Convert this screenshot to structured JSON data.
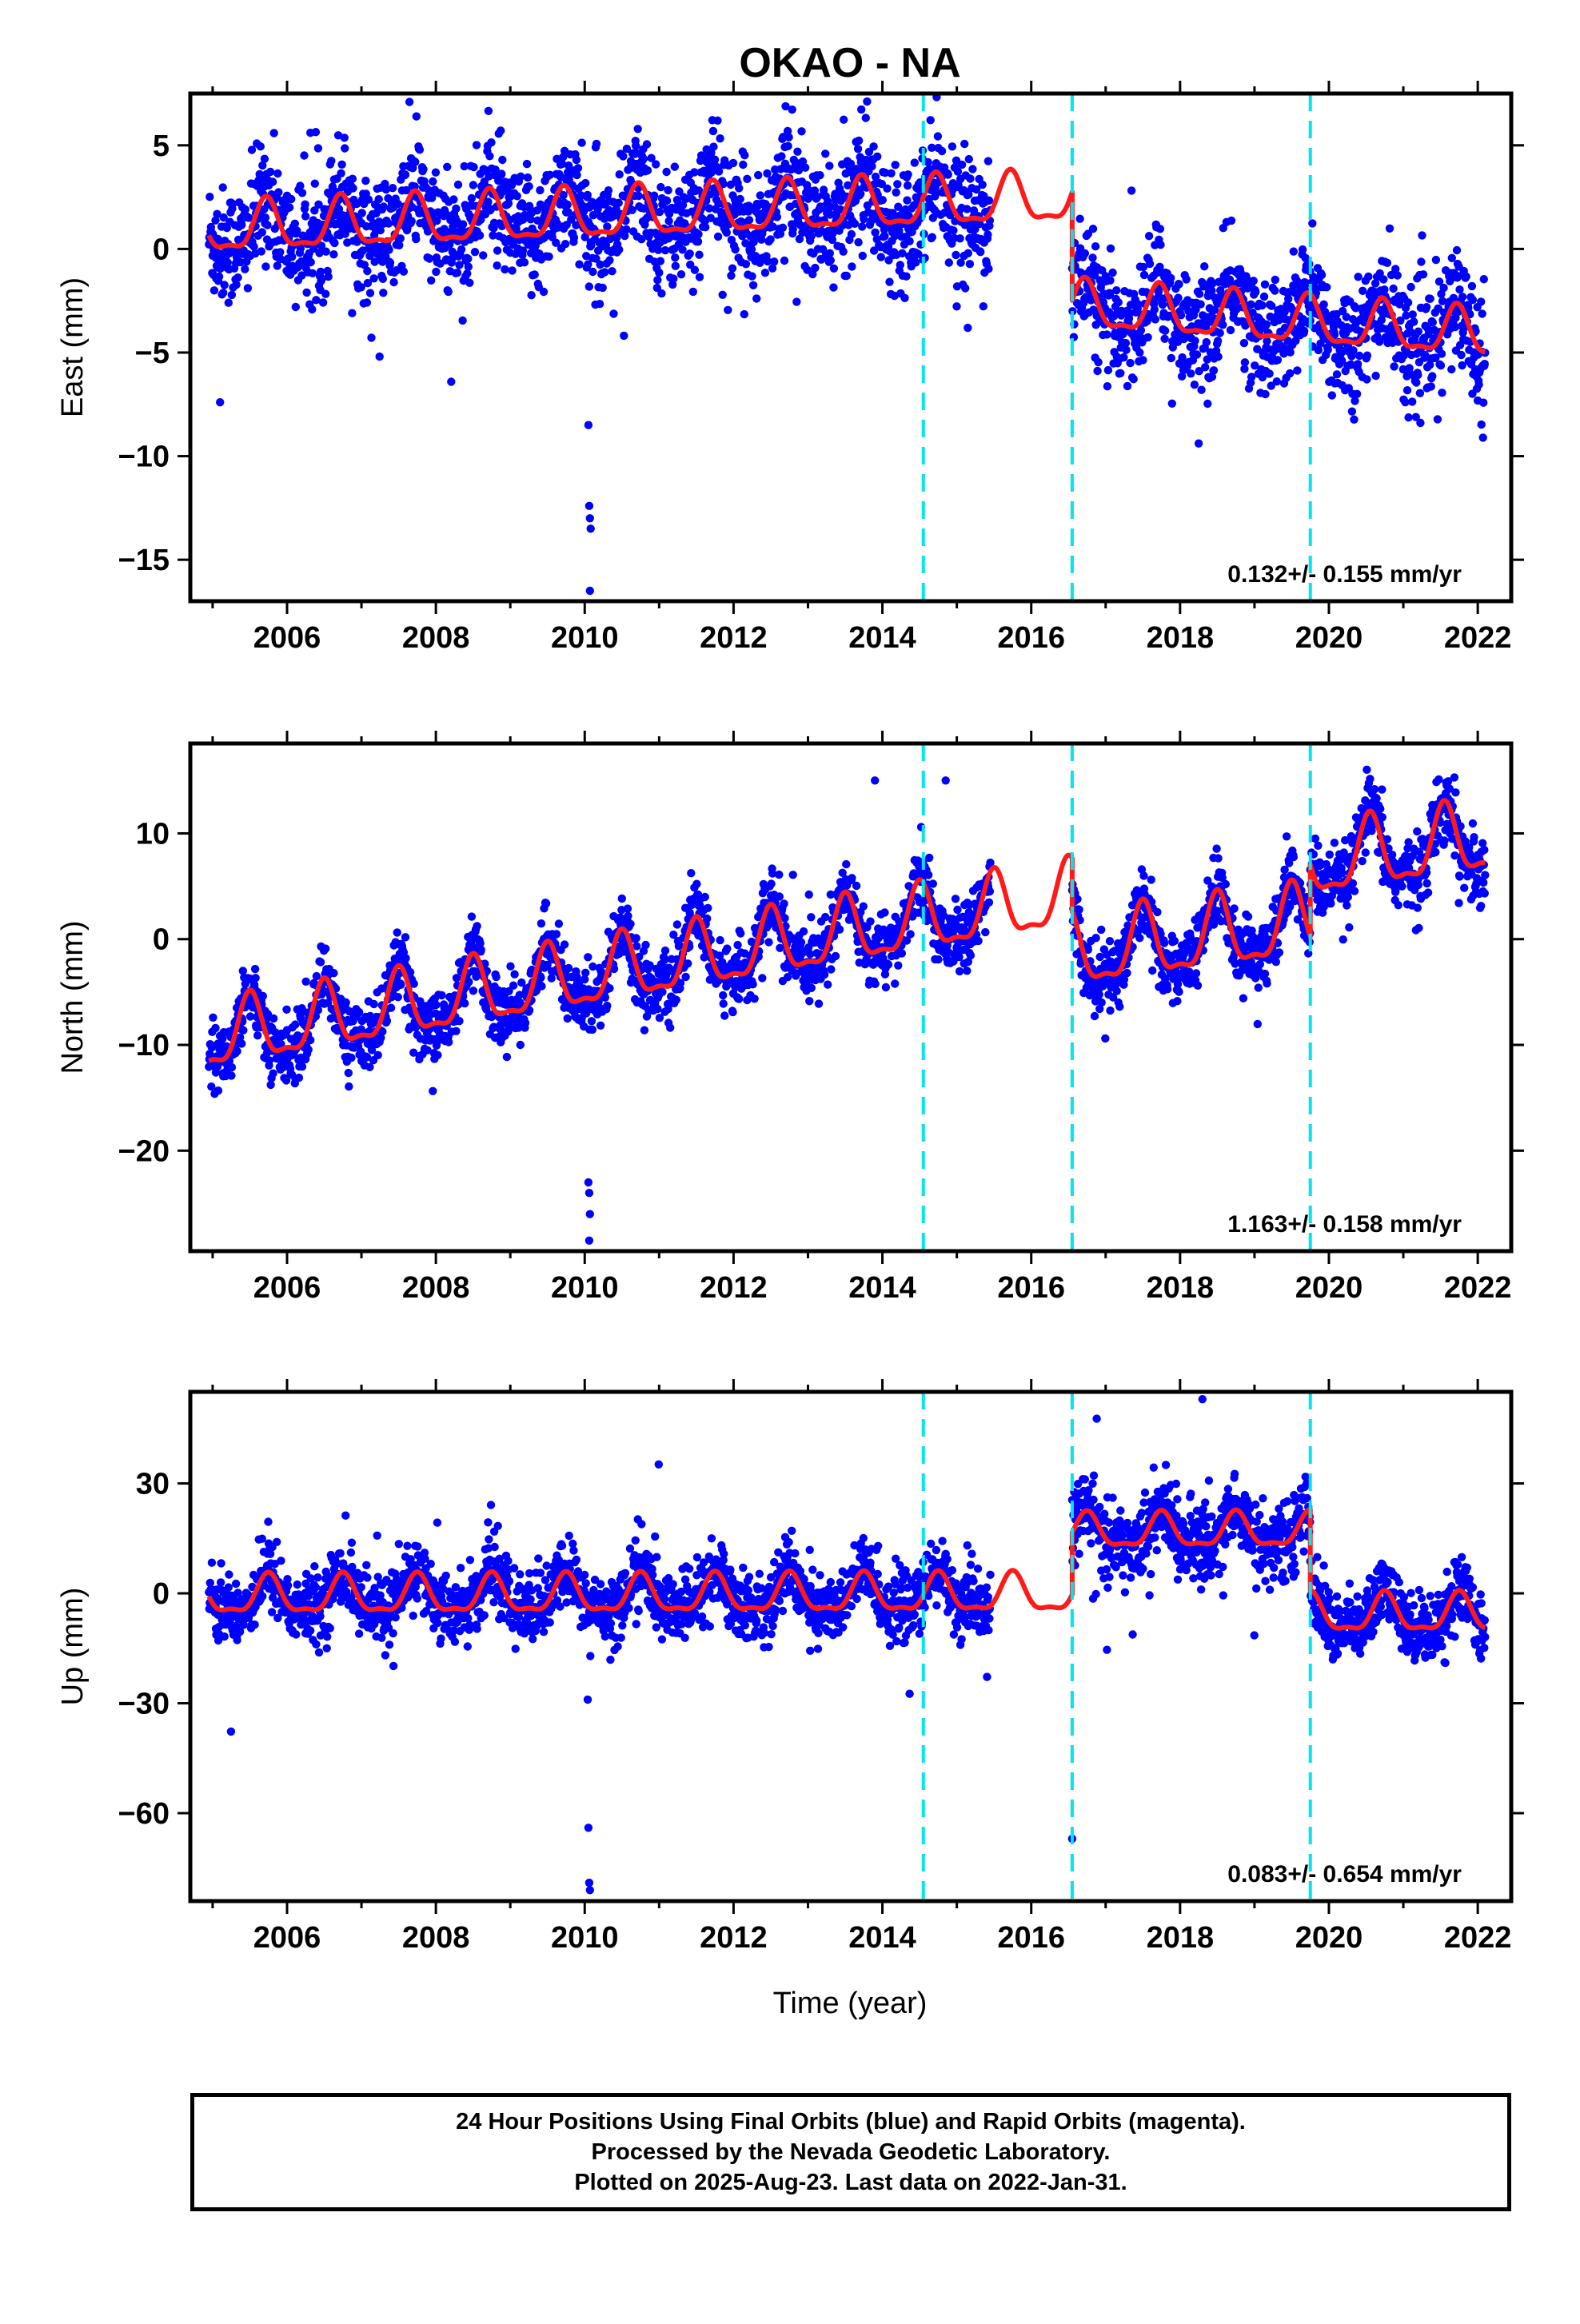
{
  "title": "OKAO - NA",
  "xlabel": "Time (year)",
  "caption": {
    "line1": "24 Hour Positions Using Final Orbits (blue) and Rapid Orbits (magenta).",
    "line2": "Processed by the Nevada Geodetic Laboratory.",
    "line3": "Plotted on 2025-Aug-23. Last data on 2022-Jan-31."
  },
  "colors": {
    "data": "#0000ff",
    "model": "#ff1a1a",
    "event_line": "#00e5ee",
    "axes": "#000000"
  },
  "chart_data": [
    {
      "type": "scatter",
      "component": "east",
      "ylabel": "East (mm)",
      "rate_text": "0.132+/- 0.155 mm/yr",
      "xlim": [
        2004.7,
        2022.45
      ],
      "ylim": [
        -17,
        7.5
      ],
      "xticks": [
        2006,
        2008,
        2010,
        2012,
        2014,
        2016,
        2018,
        2020,
        2022
      ],
      "yticks": [
        5,
        0,
        -5,
        -10,
        -15
      ],
      "event_lines": [
        2014.55,
        2016.55,
        2019.75
      ],
      "data_gap": [
        2015.45,
        2016.55
      ],
      "segments": [
        {
          "x0": 2004.95,
          "x1": 2016.55,
          "y0": 0.9,
          "trend": 0.13,
          "ann_amp": 1.15,
          "ann_phase_peak": 0.72,
          "noise": 1.4
        },
        {
          "x0": 2016.55,
          "x1": 2019.75,
          "y0": -2.8,
          "trend": -0.25,
          "ann_amp": 1.1,
          "ann_phase_peak": 0.72,
          "noise": 1.3
        },
        {
          "x0": 2019.75,
          "x1": 2022.1,
          "y0": -3.6,
          "trend": -0.25,
          "ann_amp": 1.1,
          "ann_phase_peak": 0.72,
          "noise": 1.4
        }
      ],
      "outliers": [
        [
          2010.05,
          -8.5
        ],
        [
          2010.06,
          -12.4
        ],
        [
          2010.07,
          -13.0
        ],
        [
          2010.08,
          -13.5
        ],
        [
          2010.07,
          -16.5
        ],
        [
          2005.1,
          -7.4
        ]
      ]
    },
    {
      "type": "scatter",
      "component": "north",
      "ylabel": "North (mm)",
      "rate_text": "1.163+/- 0.158 mm/yr",
      "xlim": [
        2004.7,
        2022.45
      ],
      "ylim": [
        -29.5,
        18.5
      ],
      "xticks": [
        2006,
        2008,
        2010,
        2012,
        2014,
        2016,
        2018,
        2020,
        2022
      ],
      "yticks": [
        10,
        0,
        -10,
        -20
      ],
      "event_lines": [
        2014.55,
        2016.55,
        2019.75
      ],
      "data_gap": [
        2015.45,
        2016.55
      ],
      "segments": [
        {
          "x0": 2004.95,
          "x1": 2016.55,
          "y0": -9.5,
          "trend": 1.16,
          "ann_amp": 3.0,
          "ann_phase_peak": 0.5,
          "noise": 1.5
        },
        {
          "x0": 2016.55,
          "x1": 2019.75,
          "y0": -1.5,
          "trend": 0.9,
          "ann_amp": 3.3,
          "ann_phase_peak": 0.5,
          "noise": 1.6
        },
        {
          "x0": 2019.75,
          "x1": 2022.1,
          "y0": 7.0,
          "trend": 1.0,
          "ann_amp": 3.2,
          "ann_phase_peak": 0.55,
          "noise": 1.6
        }
      ],
      "outliers": [
        [
          2010.05,
          -23.0
        ],
        [
          2010.06,
          -24.0
        ],
        [
          2010.07,
          -26.0
        ],
        [
          2010.06,
          -28.5
        ],
        [
          2013.9,
          15.0
        ],
        [
          2014.85,
          15.0
        ]
      ]
    },
    {
      "type": "scatter",
      "component": "up",
      "ylabel": "Up (mm)",
      "rate_text": "0.083+/- 0.654 mm/yr",
      "xlim": [
        2004.7,
        2022.45
      ],
      "ylim": [
        -84,
        55
      ],
      "xticks": [
        2006,
        2008,
        2010,
        2012,
        2014,
        2016,
        2018,
        2020,
        2022
      ],
      "yticks": [
        30,
        0,
        -30,
        -60
      ],
      "event_lines": [
        2014.55,
        2016.55,
        2019.75
      ],
      "data_gap": [
        2015.45,
        2016.55
      ],
      "segments": [
        {
          "x0": 2004.95,
          "x1": 2016.55,
          "y0": -1.0,
          "trend": 0.05,
          "ann_amp": 5.0,
          "ann_phase_peak": 0.75,
          "noise": 4.5
        },
        {
          "x0": 2016.55,
          "x1": 2019.75,
          "y0": 16.5,
          "trend": 0.1,
          "ann_amp": 4.5,
          "ann_phase_peak": 0.75,
          "noise": 5.0
        },
        {
          "x0": 2019.75,
          "x1": 2022.1,
          "y0": -6.0,
          "trend": 0.05,
          "ann_amp": 5.0,
          "ann_phase_peak": 0.75,
          "noise": 4.5
        }
      ],
      "outliers": [
        [
          2010.05,
          -64.0
        ],
        [
          2010.06,
          -79.0
        ],
        [
          2010.07,
          -81.0
        ],
        [
          2016.55,
          -67.0
        ],
        [
          2018.3,
          53.0
        ],
        [
          2010.04,
          -29.0
        ]
      ]
    }
  ]
}
